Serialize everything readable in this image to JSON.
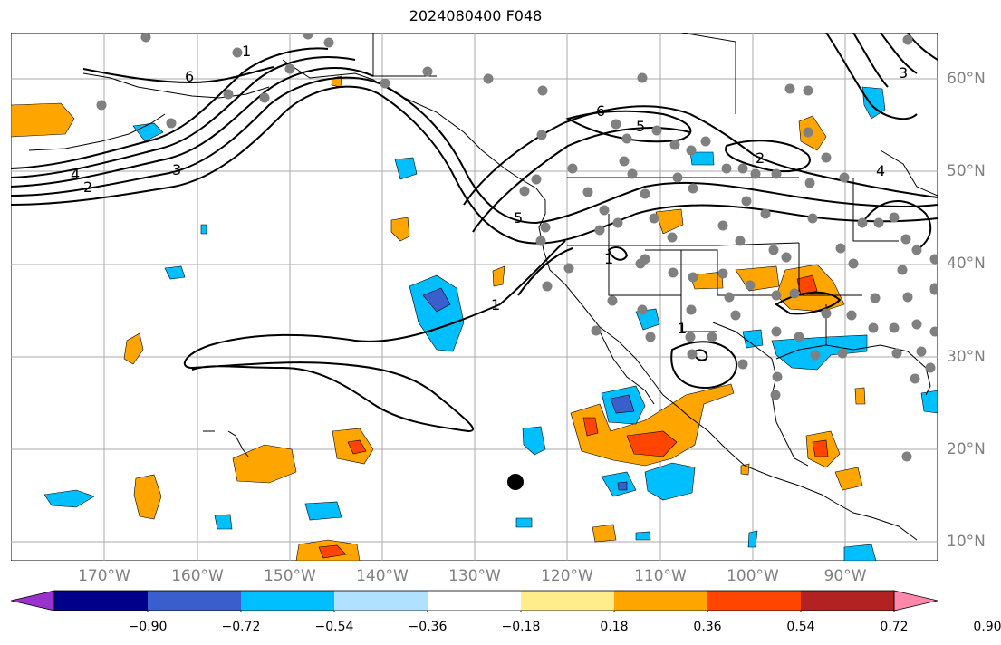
{
  "title": "2024080400 F048",
  "lat_labels": [
    "60°N",
    "50°N",
    "40°N",
    "30°N",
    "20°N",
    "10°N"
  ],
  "lon_labels": [
    "170°W",
    "160°W",
    "150°W",
    "140°W",
    "130°W",
    "120°W",
    "110°W",
    "100°W",
    "90°W"
  ],
  "colorbar": {
    "ticks": [
      "−0.90",
      "−0.72",
      "−0.54",
      "−0.36",
      "−0.18",
      "0.18",
      "0.36",
      "0.54",
      "0.72",
      "0.90"
    ],
    "colors": [
      "#9932cc",
      "#00008b",
      "#3a5fcd",
      "#00bfff",
      "#b0e2ff",
      "#ffffff",
      "#ffec8b",
      "#ffa500",
      "#ff4500",
      "#b22222",
      "#ff88aa"
    ]
  },
  "colors": {
    "orange": "#ffa500",
    "red": "#ff4500",
    "light_blue": "#00bfff",
    "blue": "#3a5fcd",
    "station": "#808080",
    "grid": "#aaaaaa"
  },
  "contour_labels": [
    "1",
    "2",
    "3",
    "4",
    "5",
    "6"
  ]
}
